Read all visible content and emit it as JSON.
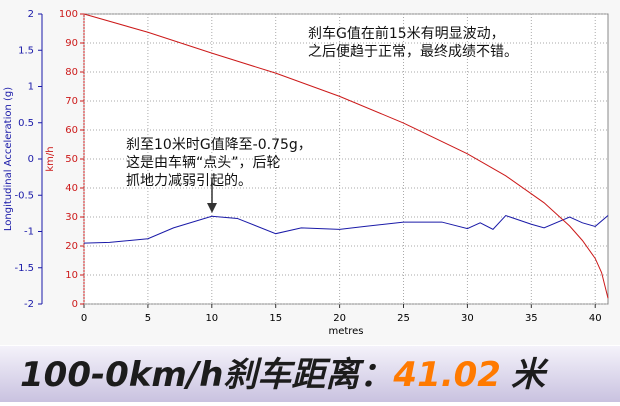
{
  "chart_data": {
    "type": "line",
    "xlabel": "metres",
    "ylabel": "Longitudinal Acceleration (g)",
    "y2label": "km/h",
    "xlim": [
      0,
      41
    ],
    "xticks": [
      0,
      5,
      10,
      15,
      20,
      25,
      30,
      35,
      40
    ],
    "ylim": [
      -2,
      2
    ],
    "yticks": [
      2,
      1.5,
      1,
      0.5,
      0,
      -0.5,
      -1,
      -1.5,
      -2
    ],
    "y2lim": [
      0,
      100
    ],
    "y2ticks": [
      100,
      90,
      80,
      70,
      60,
      50,
      40,
      30,
      20,
      10,
      0
    ],
    "grid": true,
    "series": [
      {
        "name": "Longitudinal Acceleration",
        "color": "#1a1aa8",
        "x": [
          0,
          2,
          5,
          7,
          10,
          12,
          15,
          17,
          20,
          22,
          25,
          28,
          30,
          31,
          32,
          33,
          35,
          36,
          38,
          39,
          40,
          41
        ],
        "values": [
          -1.16,
          -1.15,
          -1.1,
          -0.95,
          -0.79,
          -0.82,
          -1.03,
          -0.95,
          -0.97,
          -0.93,
          -0.87,
          -0.87,
          -0.96,
          -0.88,
          -0.97,
          -0.78,
          -0.9,
          -0.95,
          -0.8,
          -0.88,
          -0.93,
          -0.78
        ]
      },
      {
        "name": "Speed",
        "color": "#cc1a1a",
        "axis": "y2",
        "x": [
          0,
          5,
          10,
          15,
          20,
          25,
          30,
          33,
          36,
          38,
          39,
          40,
          40.5,
          41
        ],
        "values": [
          100,
          93.7,
          86.5,
          79.6,
          71.6,
          62.4,
          51.8,
          44.2,
          34.9,
          26.9,
          21.9,
          15.7,
          10.8,
          2
        ]
      }
    ],
    "annotations": [
      {
        "lines": [
          "刹车G值在前15米有明显波动，",
          "之后便趋于正常，最终成绩不错。"
        ]
      },
      {
        "lines": [
          "刹至10米时G值降至-0.75g，",
          "这是由车辆“点头”，后轮",
          "抓地力减弱引起的。"
        ]
      }
    ]
  },
  "banner": {
    "label": "100-0km/h刹车距离：",
    "value": "41.02",
    "unit": "米"
  }
}
